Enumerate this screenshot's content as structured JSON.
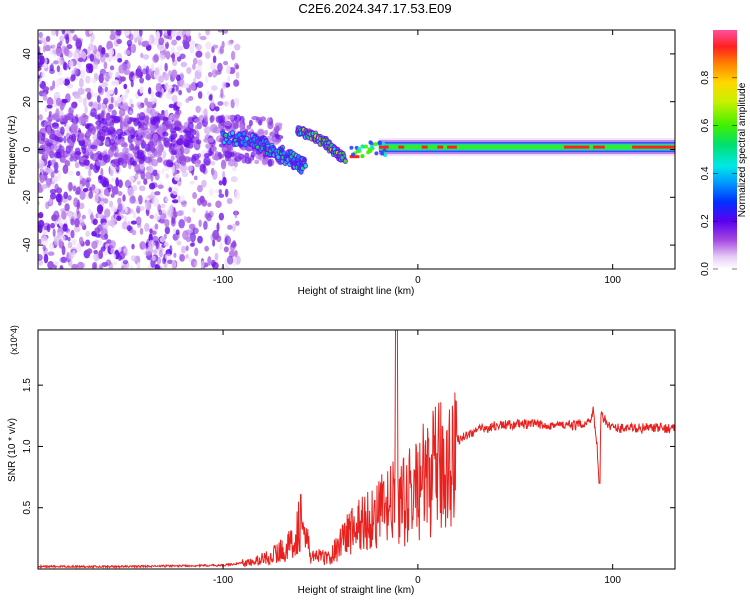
{
  "title": "C2E6.2024.347.17.53.E09",
  "chart_data": [
    {
      "type": "heatmap",
      "xlabel": "Height of straight line (km)",
      "ylabel": "Frequency (Hz)",
      "xlim": [
        -195,
        132
      ],
      "ylim": [
        -50,
        50
      ],
      "xticks": [
        -100,
        0,
        100
      ],
      "yticks": [
        -40,
        -20,
        0,
        20,
        40
      ],
      "colorbar": {
        "label": "Normalized spectral amplitude",
        "range": [
          0,
          1
        ],
        "ticks": [
          0.0,
          0.2,
          0.4,
          0.6,
          0.8
        ],
        "tick_labels": [
          "0.0",
          "0.2",
          "0.4",
          "0.6",
          "0.8"
        ]
      },
      "features": [
        {
          "name": "broadband noise",
          "x_range": [
            -195,
            -100
          ],
          "freq_range": [
            -50,
            50
          ],
          "amplitude": 0.15
        },
        {
          "name": "noisy band near 0 Hz",
          "x_range": [
            -110,
            -70
          ],
          "freq_center": 4,
          "amplitude": 0.3
        },
        {
          "name": "descending trace",
          "x": [
            -100,
            -85,
            -75,
            -65,
            -58
          ],
          "freq": [
            6,
            4,
            0,
            -4,
            -7
          ],
          "amplitude": 0.45
        },
        {
          "name": "high frequency trace",
          "x": [
            -62,
            -55,
            -48,
            -42,
            -38
          ],
          "freq": [
            8,
            6,
            3,
            -1,
            -4
          ],
          "amplitude": 0.5
        },
        {
          "name": "carrier line",
          "x": [
            -35,
            -20,
            0,
            50,
            90,
            132
          ],
          "freq": [
            -3,
            1,
            1,
            1,
            1,
            1
          ],
          "amplitude": 0.95
        }
      ]
    },
    {
      "type": "line",
      "xlabel": "Height of straight line (km)",
      "ylabel": "SNR (10 * v/v)",
      "y_multiplier": "(x10^4)",
      "xlim": [
        -195,
        132
      ],
      "ylim": [
        0,
        1.95
      ],
      "xticks": [
        -100,
        0,
        100
      ],
      "yticks": [
        0.5,
        1.0,
        1.5
      ],
      "ytick_labels": [
        "0.5",
        "1.0",
        "1.5"
      ],
      "series": [
        {
          "name": "SNR",
          "color": "#e8211f",
          "x": [
            -195,
            -150,
            -100,
            -85,
            -75,
            -65,
            -60,
            -55,
            -45,
            -38,
            -30,
            -20,
            -12,
            -11,
            -10,
            -5,
            0,
            10,
            20,
            30,
            40,
            50,
            60,
            80,
            88,
            90,
            92,
            93,
            94,
            100,
            110,
            132
          ],
          "y": [
            0.02,
            0.02,
            0.03,
            0.06,
            0.12,
            0.22,
            0.45,
            0.12,
            0.1,
            0.3,
            0.4,
            0.5,
            0.6,
            1.95,
            0.55,
            0.65,
            0.75,
            0.9,
            1.05,
            1.13,
            1.17,
            1.18,
            1.18,
            1.17,
            1.2,
            1.3,
            1.0,
            0.7,
            1.25,
            1.15,
            1.15,
            1.15
          ]
        }
      ]
    }
  ]
}
